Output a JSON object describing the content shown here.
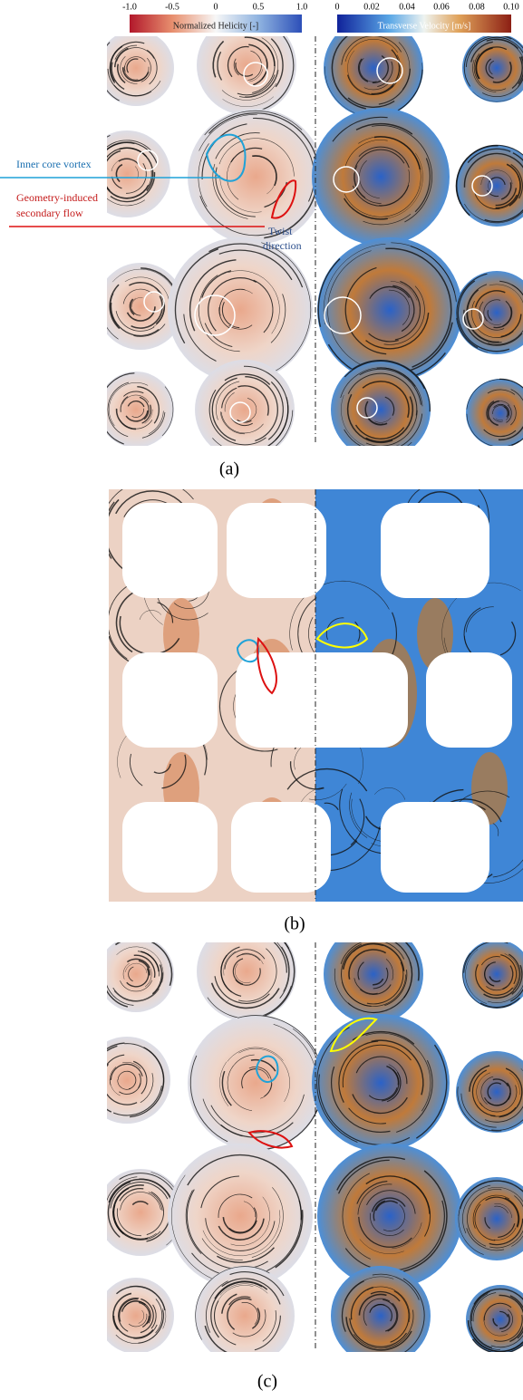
{
  "colorbars": {
    "helicity": {
      "ticks": [
        "-1.0",
        "-0.5",
        "0",
        "0.5",
        "1.0"
      ],
      "title": "Normalized Helicity [-]"
    },
    "velocity": {
      "ticks": [
        "0",
        "0.02",
        "0.04",
        "0.06",
        "0.08",
        "0.10"
      ],
      "title": "Transverse Velocity [m/s]"
    }
  },
  "annotations": {
    "inner_core": "Inner core vortex",
    "secondary": [
      "Geometry-induced",
      "secondary flow"
    ],
    "twist": [
      "Twist",
      "direction"
    ]
  },
  "panels": [
    "(a)",
    "(b)",
    "(c)"
  ]
}
